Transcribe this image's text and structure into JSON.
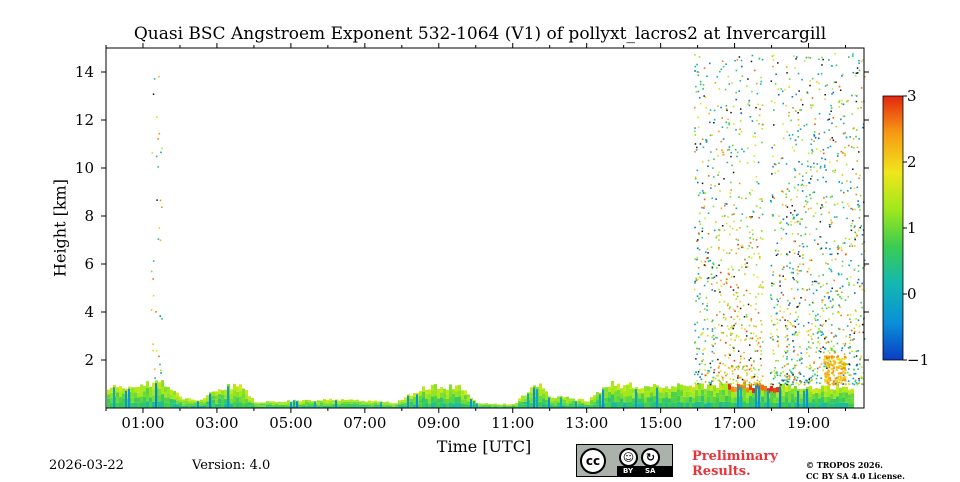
{
  "chart_data": {
    "type": "heatmap",
    "title": "Quasi BSC Angstroem Exponent 532-1064 (V1) of pollyxt_lacros2 at Invercargill",
    "xlabel": "Time [UTC]",
    "ylabel": "Height [km]",
    "x_range_hours": [
      0.0,
      20.5
    ],
    "ylim": [
      0,
      15
    ],
    "x_ticks": [
      {
        "value": 1,
        "label": "01:00"
      },
      {
        "value": 3,
        "label": "03:00"
      },
      {
        "value": 5,
        "label": "05:00"
      },
      {
        "value": 7,
        "label": "07:00"
      },
      {
        "value": 9,
        "label": "09:00"
      },
      {
        "value": 11,
        "label": "11:00"
      },
      {
        "value": 13,
        "label": "13:00"
      },
      {
        "value": 15,
        "label": "15:00"
      },
      {
        "value": 17,
        "label": "17:00"
      },
      {
        "value": 19,
        "label": "19:00"
      }
    ],
    "y_ticks": [
      {
        "value": 2,
        "label": "2"
      },
      {
        "value": 4,
        "label": "4"
      },
      {
        "value": 6,
        "label": "6"
      },
      {
        "value": 8,
        "label": "8"
      },
      {
        "value": 10,
        "label": "10"
      },
      {
        "value": 12,
        "label": "12"
      },
      {
        "value": 14,
        "label": "14"
      }
    ],
    "colorbar": {
      "min": -1,
      "max": 3,
      "ticks": [
        {
          "value": 3,
          "label": "3"
        },
        {
          "value": 2,
          "label": "2"
        },
        {
          "value": 1,
          "label": "1"
        },
        {
          "value": 0,
          "label": "0"
        },
        {
          "value": -1,
          "label": "−1"
        }
      ],
      "colors": [
        "#0b3cc4",
        "#0a8fd8",
        "#13b8b0",
        "#3bcc52",
        "#9ee81c",
        "#f0e61c",
        "#f79a14",
        "#e42610"
      ]
    },
    "boundary_layer_top_km": [
      {
        "t": 0.0,
        "h": 0.9
      },
      {
        "t": 0.5,
        "h": 0.85
      },
      {
        "t": 1.0,
        "h": 1.0
      },
      {
        "t": 1.6,
        "h": 1.05
      },
      {
        "t": 2.0,
        "h": 0.4
      },
      {
        "t": 2.5,
        "h": 0.3
      },
      {
        "t": 3.0,
        "h": 0.8
      },
      {
        "t": 3.6,
        "h": 0.95
      },
      {
        "t": 4.0,
        "h": 0.25
      },
      {
        "t": 5.0,
        "h": 0.3
      },
      {
        "t": 6.0,
        "h": 0.35
      },
      {
        "t": 7.0,
        "h": 0.3
      },
      {
        "t": 7.8,
        "h": 0.2
      },
      {
        "t": 8.5,
        "h": 0.85
      },
      {
        "t": 9.5,
        "h": 0.9
      },
      {
        "t": 10.0,
        "h": 0.2
      },
      {
        "t": 11.0,
        "h": 0.15
      },
      {
        "t": 11.6,
        "h": 1.05
      },
      {
        "t": 12.0,
        "h": 0.5
      },
      {
        "t": 13.0,
        "h": 0.3
      },
      {
        "t": 13.6,
        "h": 1.0
      },
      {
        "t": 14.5,
        "h": 0.9
      },
      {
        "t": 15.5,
        "h": 0.9
      },
      {
        "t": 16.5,
        "h": 0.95
      },
      {
        "t": 17.2,
        "h": 1.0
      },
      {
        "t": 18.0,
        "h": 0.9
      },
      {
        "t": 19.0,
        "h": 0.85
      },
      {
        "t": 20.2,
        "h": 0.9
      }
    ],
    "scatter_regions": [
      {
        "t0": 1.2,
        "t1": 1.5,
        "h0": 1.0,
        "h1": 14.3,
        "density": 0.3
      },
      {
        "t0": 15.9,
        "t1": 20.5,
        "h0": 1.0,
        "h1": 14.8,
        "density": 1.0
      }
    ]
  },
  "footer": {
    "date": "2026-03-22",
    "version": "Version: 4.0",
    "preliminary_line1": "Preliminary",
    "preliminary_line2": "Results.",
    "copyright_line1": "© TROPOS 2026.",
    "copyright_line2": "CC BY SA 4.0 License.",
    "license_badge": {
      "cc": "cc",
      "by": "BY",
      "sa": "SA"
    }
  }
}
